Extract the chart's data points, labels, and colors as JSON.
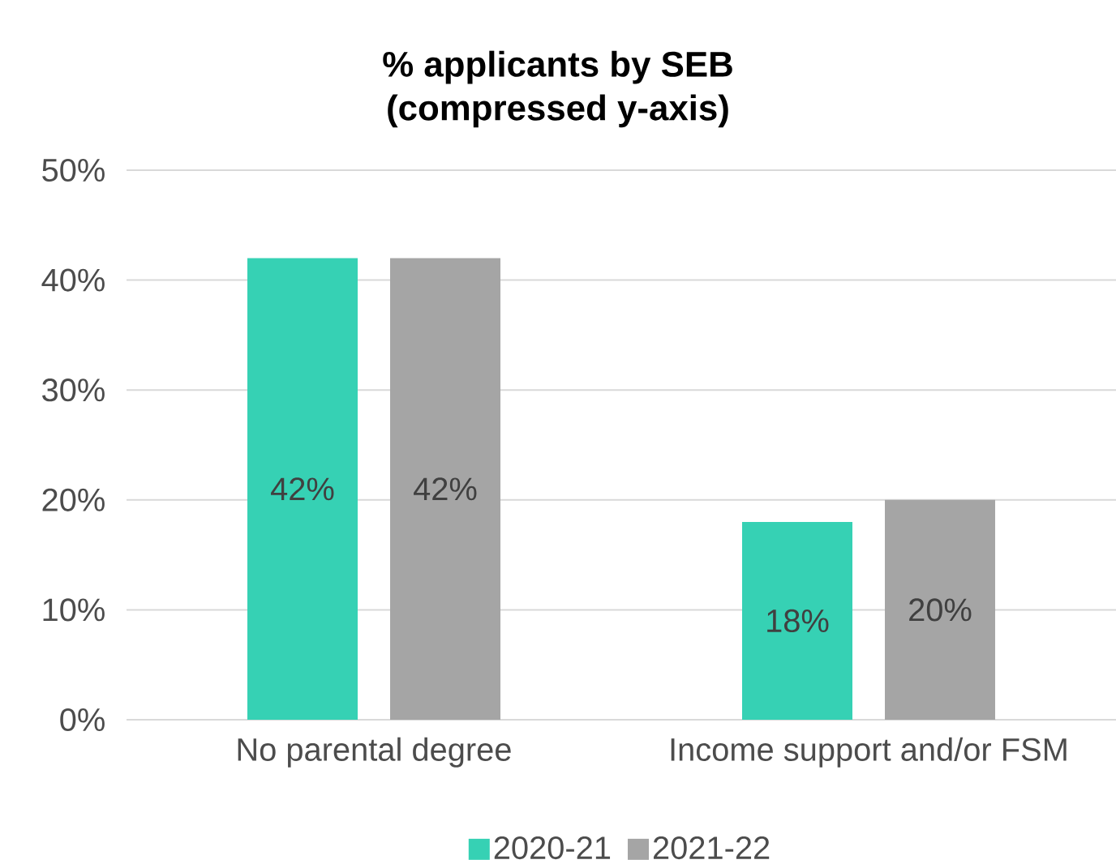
{
  "chart_data": {
    "type": "bar",
    "title": "% applicants by SEB\n(compressed y-axis)",
    "categories": [
      "No parental degree",
      "Income support and/or FSM"
    ],
    "series": [
      {
        "name": "2020-21",
        "color": "#36d1b4",
        "values": [
          42,
          18
        ],
        "value_labels": [
          "42%",
          "18%"
        ]
      },
      {
        "name": "2021-22",
        "color": "#a5a5a5",
        "values": [
          42,
          20
        ],
        "value_labels": [
          "42%",
          "20%"
        ]
      }
    ],
    "ylim": [
      0,
      50
    ],
    "yticks": [
      {
        "value": 0,
        "label": "0%"
      },
      {
        "value": 10,
        "label": "10%"
      },
      {
        "value": 20,
        "label": "20%"
      },
      {
        "value": 30,
        "label": "30%"
      },
      {
        "value": 40,
        "label": "40%"
      },
      {
        "value": 50,
        "label": "50%"
      }
    ],
    "grid": "y",
    "legend": "bottom"
  }
}
